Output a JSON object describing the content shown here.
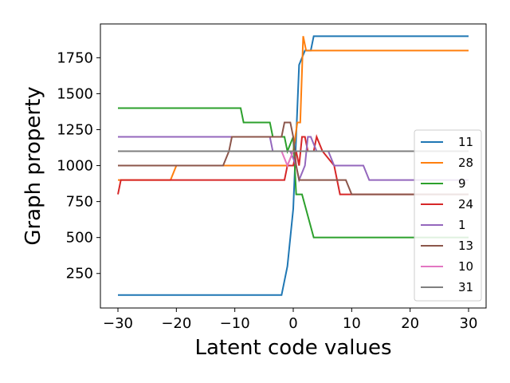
{
  "chart_data": {
    "type": "line",
    "title": "",
    "xlabel": "Latent code values",
    "ylabel": "Graph property",
    "xlim": [
      -33,
      33
    ],
    "ylim": [
      10,
      1985
    ],
    "xticks": [
      -30,
      -20,
      -10,
      0,
      10,
      20,
      30
    ],
    "yticks": [
      250,
      500,
      750,
      1000,
      1250,
      1500,
      1750
    ],
    "xtick_labels": [
      "−30",
      "−20",
      "−10",
      "0",
      "10",
      "20",
      "30"
    ],
    "ytick_labels": [
      "250",
      "500",
      "750",
      "1000",
      "1250",
      "1500",
      "1750"
    ],
    "grid": false,
    "legend_position": "right",
    "series": [
      {
        "name": "11",
        "color": "#1f77b4",
        "points": [
          [
            -30,
            100
          ],
          [
            -2,
            100
          ],
          [
            -1,
            300
          ],
          [
            0,
            700
          ],
          [
            0.5,
            1200
          ],
          [
            1,
            1700
          ],
          [
            2,
            1800
          ],
          [
            3,
            1800
          ],
          [
            3.5,
            1900
          ],
          [
            30,
            1900
          ]
        ]
      },
      {
        "name": "28",
        "color": "#ff7f0e",
        "points": [
          [
            -30,
            900
          ],
          [
            -21,
            900
          ],
          [
            -20,
            1000
          ],
          [
            -1,
            1000
          ],
          [
            0,
            1100
          ],
          [
            0.7,
            1300
          ],
          [
            1.2,
            1300
          ],
          [
            1.7,
            1900
          ],
          [
            2.2,
            1800
          ],
          [
            30,
            1800
          ]
        ]
      },
      {
        "name": "9",
        "color": "#2ca02c",
        "points": [
          [
            -30,
            1400
          ],
          [
            -9,
            1400
          ],
          [
            -8.5,
            1300
          ],
          [
            -4,
            1300
          ],
          [
            -3.5,
            1200
          ],
          [
            -1.5,
            1200
          ],
          [
            -1,
            1100
          ],
          [
            0,
            1200
          ],
          [
            0.5,
            800
          ],
          [
            1.5,
            800
          ],
          [
            3.5,
            500
          ],
          [
            30,
            500
          ]
        ]
      },
      {
        "name": "24",
        "color": "#d62728",
        "points": [
          [
            -30,
            800
          ],
          [
            -29.5,
            900
          ],
          [
            -1.5,
            900
          ],
          [
            -1,
            1000
          ],
          [
            0,
            1000
          ],
          [
            0.5,
            1100
          ],
          [
            1,
            1000
          ],
          [
            1.5,
            1200
          ],
          [
            2,
            1200
          ],
          [
            2.5,
            1100
          ],
          [
            3.5,
            1100
          ],
          [
            4,
            1200
          ],
          [
            5,
            1100
          ],
          [
            7,
            1000
          ],
          [
            8,
            800
          ],
          [
            30,
            800
          ]
        ]
      },
      {
        "name": "1",
        "color": "#9467bd",
        "points": [
          [
            -30,
            1200
          ],
          [
            -4,
            1200
          ],
          [
            -3.5,
            1100
          ],
          [
            -0.5,
            1100
          ],
          [
            0.5,
            1000
          ],
          [
            1,
            900
          ],
          [
            2,
            1000
          ],
          [
            2.5,
            1200
          ],
          [
            3,
            1200
          ],
          [
            4,
            1100
          ],
          [
            6,
            1100
          ],
          [
            7,
            1000
          ],
          [
            12,
            1000
          ],
          [
            13,
            900
          ],
          [
            30,
            900
          ]
        ]
      },
      {
        "name": "13",
        "color": "#8c564b",
        "points": [
          [
            -30,
            1000
          ],
          [
            -12,
            1000
          ],
          [
            -11,
            1100
          ],
          [
            -10.5,
            1200
          ],
          [
            -2,
            1200
          ],
          [
            -1.5,
            1300
          ],
          [
            -0.5,
            1300
          ],
          [
            0,
            1200
          ],
          [
            0.5,
            1000
          ],
          [
            1,
            900
          ],
          [
            9,
            900
          ],
          [
            10,
            800
          ],
          [
            30,
            800
          ]
        ]
      },
      {
        "name": "10",
        "color": "#e377c2",
        "points": [
          [
            -30,
            1100
          ],
          [
            -3,
            1100
          ],
          [
            -2,
            1100
          ],
          [
            -1,
            1000
          ],
          [
            0,
            1100
          ],
          [
            1,
            1100
          ],
          [
            30,
            1100
          ]
        ]
      },
      {
        "name": "31",
        "color": "#7f7f7f",
        "points": [
          [
            -30,
            1100
          ],
          [
            30,
            1100
          ]
        ]
      }
    ]
  }
}
